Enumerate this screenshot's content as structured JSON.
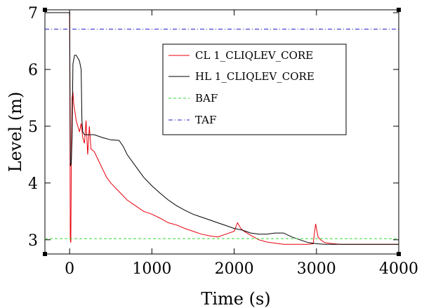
{
  "chart_data": {
    "type": "line",
    "xlabel": "Time (s)",
    "ylabel": "Level (m)",
    "xlim": [
      -300,
      4000
    ],
    "ylim": [
      2.75,
      7.05
    ],
    "xticks": [
      0,
      1000,
      2000,
      3000,
      4000
    ],
    "yticks": [
      3,
      4,
      5,
      6,
      7
    ],
    "xtick_labels": [
      "0",
      "1000",
      "2000",
      "3000",
      "4000"
    ],
    "ytick_labels": [
      "3",
      "4",
      "5",
      "6",
      "7"
    ],
    "grid": false,
    "legend_position": "top-right",
    "series": [
      {
        "name": "CL 1_CLIQLEV_CORE",
        "color": "#e8000b",
        "style": "solid",
        "x": [
          -300,
          0,
          8,
          15,
          22,
          30,
          40,
          50,
          60,
          80,
          100,
          120,
          140,
          160,
          180,
          200,
          220,
          240,
          260,
          300,
          350,
          400,
          450,
          500,
          600,
          700,
          800,
          900,
          1000,
          1100,
          1200,
          1300,
          1400,
          1500,
          1600,
          1700,
          1800,
          1900,
          2000,
          2040,
          2080,
          2120,
          2200,
          2300,
          2400,
          2500,
          2600,
          2700,
          2800,
          2900,
          2960,
          2990,
          3020,
          3050,
          3100,
          3200,
          3300,
          3400,
          3500,
          3600,
          3700,
          3800,
          3900,
          4000
        ],
        "y": [
          7.0,
          7.0,
          3.0,
          2.95,
          4.6,
          5.5,
          5.6,
          5.4,
          5.3,
          5.1,
          5.0,
          4.9,
          5.05,
          4.8,
          4.7,
          5.1,
          4.5,
          5.0,
          4.6,
          4.55,
          4.4,
          4.25,
          4.1,
          4.0,
          3.85,
          3.7,
          3.6,
          3.5,
          3.45,
          3.38,
          3.3,
          3.26,
          3.2,
          3.15,
          3.1,
          3.07,
          3.05,
          3.1,
          3.15,
          3.3,
          3.2,
          3.15,
          3.08,
          3.0,
          2.96,
          2.94,
          2.92,
          2.92,
          2.92,
          2.92,
          2.93,
          3.28,
          3.05,
          3.0,
          2.95,
          2.93,
          2.92,
          2.92,
          2.92,
          2.92,
          2.92,
          2.92,
          2.92,
          2.92
        ]
      },
      {
        "name": "HL 1_CLIQLEV_CORE",
        "color": "#000000",
        "style": "solid",
        "x": [
          -300,
          0,
          10,
          20,
          30,
          40,
          60,
          80,
          100,
          120,
          140,
          150,
          160,
          180,
          200,
          300,
          400,
          500,
          600,
          650,
          700,
          800,
          900,
          1000,
          1100,
          1200,
          1300,
          1400,
          1500,
          1600,
          1700,
          1800,
          1900,
          2000,
          2100,
          2200,
          2300,
          2400,
          2500,
          2600,
          2700,
          2800,
          2900,
          3000,
          3100,
          3200,
          3300,
          3400,
          3500,
          3600,
          3700,
          3800,
          3900,
          4000
        ],
        "y": [
          7.0,
          7.0,
          4.3,
          4.35,
          4.8,
          6.1,
          6.25,
          6.25,
          6.2,
          6.15,
          6.0,
          5.1,
          4.9,
          4.85,
          4.85,
          4.85,
          4.8,
          4.76,
          4.75,
          4.65,
          4.5,
          4.3,
          4.1,
          3.95,
          3.82,
          3.7,
          3.6,
          3.52,
          3.45,
          3.4,
          3.35,
          3.3,
          3.25,
          3.2,
          3.17,
          3.12,
          3.1,
          3.1,
          3.12,
          3.12,
          3.05,
          3.0,
          2.95,
          2.93,
          2.92,
          2.92,
          2.92,
          2.92,
          2.92,
          2.92,
          2.92,
          2.92,
          2.92,
          2.92
        ]
      },
      {
        "name": "BAF",
        "color": "#33dd33",
        "style": "dashed",
        "x": [
          -300,
          4000
        ],
        "y": [
          3.02,
          3.02
        ]
      },
      {
        "name": "TAF",
        "color": "#2222cc",
        "style": "dashdot",
        "x": [
          -300,
          4000
        ],
        "y": [
          6.71,
          6.71
        ]
      }
    ]
  }
}
